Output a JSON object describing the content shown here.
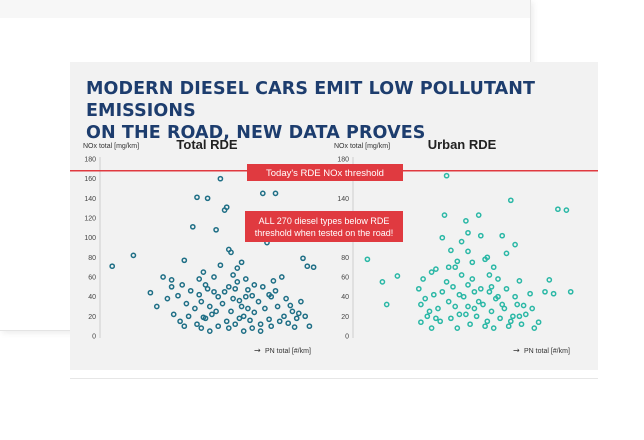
{
  "headline": {
    "line1": "MODERN DIESEL CARS EMIT LOW POLLUTANT EMISSIONS",
    "line2": "ON THE ROAD, NEW DATA PROVES"
  },
  "threshold": {
    "label": "Today's RDE NOx threshold",
    "value": 168
  },
  "callout": {
    "line1": "ALL 270 diesel types below RDE",
    "line2": "threshold when tested on the road!"
  },
  "colors": {
    "total_marker": "#1f6f86",
    "urban_marker": "#2bb8a6",
    "threshold": "#e03a40",
    "title": "#1d3d6e"
  },
  "chart_data": [
    {
      "type": "scatter",
      "title": "Total RDE",
      "ylabel": "NOx total [mg/km]",
      "xlabel": "PN total [#/km]",
      "ylim": [
        0,
        180
      ],
      "yticks": [
        0,
        20,
        40,
        60,
        80,
        100,
        120,
        140,
        160,
        180
      ],
      "xlim": [
        0,
        1
      ],
      "x_unlabeled": true,
      "points": [
        [
          0.02,
          71
        ],
        [
          0.12,
          82
        ],
        [
          0.2,
          44
        ],
        [
          0.23,
          30
        ],
        [
          0.28,
          38
        ],
        [
          0.3,
          57
        ],
        [
          0.31,
          22
        ],
        [
          0.33,
          41
        ],
        [
          0.36,
          77
        ],
        [
          0.38,
          20
        ],
        [
          0.4,
          111
        ],
        [
          0.42,
          141
        ],
        [
          0.43,
          58
        ],
        [
          0.45,
          19
        ],
        [
          0.47,
          140
        ],
        [
          0.5,
          45
        ],
        [
          0.51,
          108
        ],
        [
          0.53,
          160
        ],
        [
          0.55,
          128
        ],
        [
          0.56,
          131
        ],
        [
          0.57,
          88
        ],
        [
          0.58,
          85
        ],
        [
          0.59,
          62
        ],
        [
          0.6,
          48
        ],
        [
          0.61,
          69
        ],
        [
          0.62,
          36
        ],
        [
          0.64,
          20
        ],
        [
          0.65,
          58
        ],
        [
          0.66,
          28
        ],
        [
          0.68,
          41
        ],
        [
          0.7,
          121
        ],
        [
          0.73,
          145
        ],
        [
          0.75,
          95
        ],
        [
          0.78,
          56
        ],
        [
          0.79,
          145
        ],
        [
          0.82,
          60
        ],
        [
          0.84,
          38
        ],
        [
          0.86,
          31
        ],
        [
          0.88,
          9
        ],
        [
          0.9,
          23
        ],
        [
          0.92,
          79
        ],
        [
          0.94,
          71
        ],
        [
          0.97,
          70
        ],
        [
          0.35,
          52
        ],
        [
          0.37,
          33
        ],
        [
          0.39,
          46
        ],
        [
          0.41,
          28
        ],
        [
          0.44,
          35
        ],
        [
          0.46,
          52
        ],
        [
          0.48,
          30
        ],
        [
          0.49,
          22
        ],
        [
          0.52,
          40
        ],
        [
          0.54,
          33
        ],
        [
          0.56,
          15
        ],
        [
          0.58,
          25
        ],
        [
          0.6,
          12
        ],
        [
          0.62,
          18
        ],
        [
          0.63,
          30
        ],
        [
          0.66,
          47
        ],
        [
          0.67,
          16
        ],
        [
          0.69,
          24
        ],
        [
          0.71,
          35
        ],
        [
          0.72,
          12
        ],
        [
          0.74,
          28
        ],
        [
          0.76,
          17
        ],
        [
          0.77,
          40
        ],
        [
          0.8,
          30
        ],
        [
          0.81,
          15
        ],
        [
          0.83,
          20
        ],
        [
          0.85,
          13
        ],
        [
          0.87,
          25
        ],
        [
          0.89,
          18
        ],
        [
          0.91,
          35
        ],
        [
          0.93,
          20
        ],
        [
          0.95,
          10
        ],
        [
          0.45,
          65
        ],
        [
          0.5,
          60
        ],
        [
          0.53,
          72
        ],
        [
          0.57,
          50
        ],
        [
          0.61,
          55
        ],
        [
          0.63,
          75
        ],
        [
          0.65,
          40
        ],
        [
          0.69,
          52
        ],
        [
          0.73,
          50
        ],
        [
          0.76,
          42
        ],
        [
          0.79,
          46
        ],
        [
          0.43,
          42
        ],
        [
          0.47,
          48
        ],
        [
          0.51,
          25
        ],
        [
          0.55,
          45
        ],
        [
          0.59,
          38
        ],
        [
          0.64,
          5
        ],
        [
          0.68,
          8
        ],
        [
          0.72,
          5
        ],
        [
          0.77,
          10
        ],
        [
          0.34,
          15
        ],
        [
          0.36,
          10
        ],
        [
          0.42,
          12
        ],
        [
          0.44,
          8
        ],
        [
          0.46,
          18
        ],
        [
          0.48,
          5
        ],
        [
          0.52,
          10
        ],
        [
          0.57,
          8
        ],
        [
          0.26,
          60
        ],
        [
          0.3,
          50
        ]
      ]
    },
    {
      "type": "scatter",
      "title": "Urban RDE",
      "ylabel": "NOx total [mg/km]",
      "xlabel": "PN total [#/km]",
      "ylim": [
        0,
        180
      ],
      "yticks": [
        0,
        20,
        40,
        60,
        80,
        100,
        120,
        140,
        160,
        180
      ],
      "xlim": [
        0,
        1
      ],
      "x_unlabeled": true,
      "points": [
        [
          0.03,
          78
        ],
        [
          0.1,
          55
        ],
        [
          0.17,
          61
        ],
        [
          0.12,
          32
        ],
        [
          0.27,
          48
        ],
        [
          0.3,
          38
        ],
        [
          0.33,
          65
        ],
        [
          0.35,
          68
        ],
        [
          0.38,
          100
        ],
        [
          0.39,
          123
        ],
        [
          0.4,
          163
        ],
        [
          0.42,
          87
        ],
        [
          0.44,
          70
        ],
        [
          0.45,
          76
        ],
        [
          0.47,
          96
        ],
        [
          0.49,
          117
        ],
        [
          0.5,
          86
        ],
        [
          0.52,
          75
        ],
        [
          0.55,
          123
        ],
        [
          0.56,
          102
        ],
        [
          0.58,
          78
        ],
        [
          0.6,
          45
        ],
        [
          0.62,
          70
        ],
        [
          0.64,
          58
        ],
        [
          0.66,
          102
        ],
        [
          0.68,
          84
        ],
        [
          0.7,
          138
        ],
        [
          0.72,
          93
        ],
        [
          0.74,
          56
        ],
        [
          0.76,
          31
        ],
        [
          0.79,
          43
        ],
        [
          0.83,
          14
        ],
        [
          0.86,
          45
        ],
        [
          0.88,
          57
        ],
        [
          0.9,
          43
        ],
        [
          0.92,
          129
        ],
        [
          0.96,
          128
        ],
        [
          0.98,
          45
        ],
        [
          0.28,
          32
        ],
        [
          0.31,
          20
        ],
        [
          0.34,
          42
        ],
        [
          0.36,
          28
        ],
        [
          0.37,
          15
        ],
        [
          0.41,
          35
        ],
        [
          0.43,
          50
        ],
        [
          0.46,
          22
        ],
        [
          0.48,
          40
        ],
        [
          0.5,
          30
        ],
        [
          0.51,
          12
        ],
        [
          0.53,
          45
        ],
        [
          0.54,
          20
        ],
        [
          0.57,
          32
        ],
        [
          0.59,
          15
        ],
        [
          0.61,
          25
        ],
        [
          0.63,
          38
        ],
        [
          0.65,
          18
        ],
        [
          0.67,
          28
        ],
        [
          0.69,
          10
        ],
        [
          0.71,
          20
        ],
        [
          0.73,
          32
        ],
        [
          0.75,
          12
        ],
        [
          0.77,
          22
        ],
        [
          0.8,
          28
        ],
        [
          0.81,
          8
        ],
        [
          0.28,
          14
        ],
        [
          0.33,
          8
        ],
        [
          0.38,
          45
        ],
        [
          0.4,
          55
        ],
        [
          0.44,
          30
        ],
        [
          0.47,
          62
        ],
        [
          0.52,
          58
        ],
        [
          0.56,
          48
        ],
        [
          0.6,
          62
        ],
        [
          0.64,
          40
        ],
        [
          0.68,
          48
        ],
        [
          0.72,
          40
        ],
        [
          0.29,
          58
        ],
        [
          0.32,
          25
        ],
        [
          0.35,
          18
        ],
        [
          0.42,
          18
        ],
        [
          0.45,
          8
        ],
        [
          0.49,
          22
        ],
        [
          0.53,
          28
        ],
        [
          0.58,
          10
        ],
        [
          0.62,
          8
        ],
        [
          0.66,
          32
        ],
        [
          0.7,
          15
        ],
        [
          0.74,
          20
        ],
        [
          0.46,
          42
        ],
        [
          0.5,
          52
        ],
        [
          0.55,
          35
        ],
        [
          0.61,
          50
        ],
        [
          0.41,
          70
        ],
        [
          0.5,
          105
        ],
        [
          0.59,
          80
        ]
      ]
    }
  ]
}
